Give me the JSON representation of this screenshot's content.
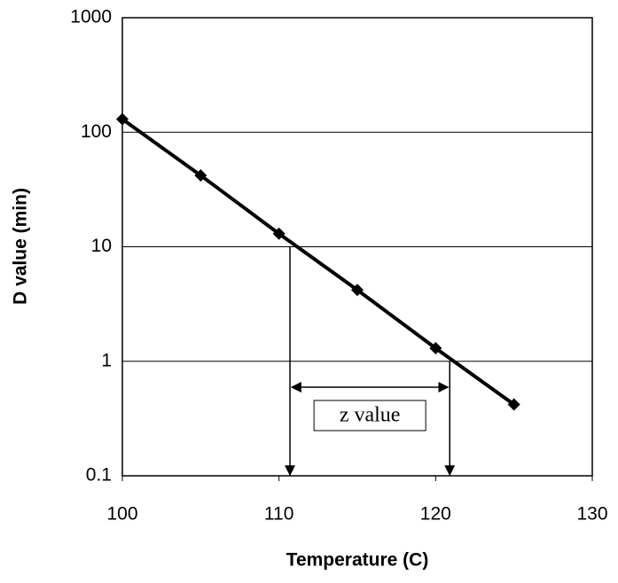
{
  "chart_data": {
    "type": "line",
    "x_label": "Temperature (C)",
    "y_label": "D value (min)",
    "x": [
      100,
      105,
      110,
      115,
      120,
      125
    ],
    "values": [
      130,
      42,
      13,
      4.2,
      1.3,
      0.42
    ],
    "color": "#000000",
    "xlim": [
      100,
      130
    ],
    "xticks": [
      100,
      110,
      120,
      130
    ],
    "ylim": [
      0.1,
      1000
    ],
    "yticks": [
      0.1,
      1,
      10,
      100,
      1000
    ],
    "y_scale": "log",
    "grid": true,
    "annotation": "z value",
    "z_markers": [
      {
        "x": 110.7,
        "y": 10
      },
      {
        "x": 120.9,
        "y": 1
      }
    ]
  }
}
